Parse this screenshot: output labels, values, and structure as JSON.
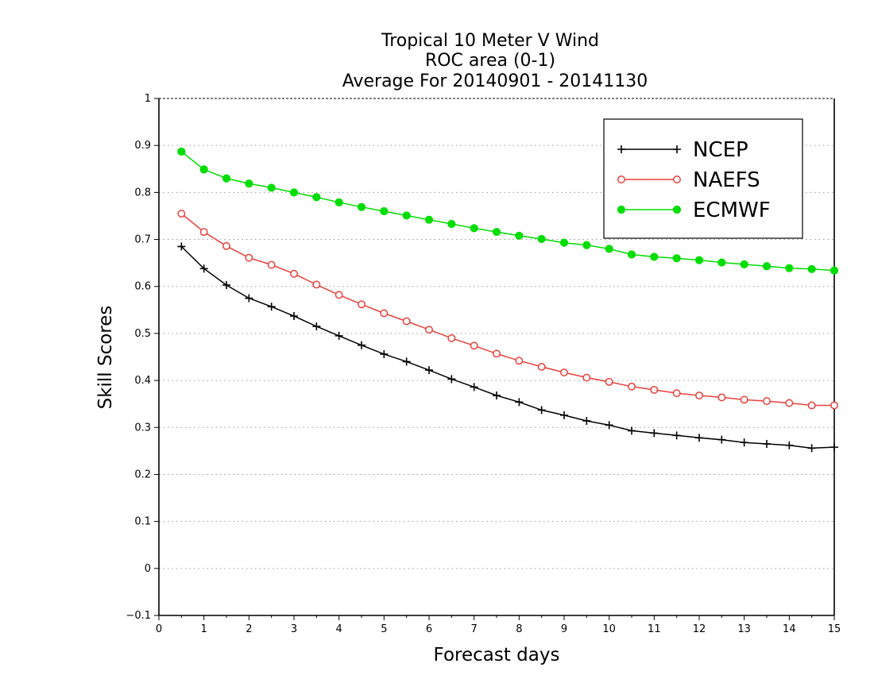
{
  "chart_data": {
    "type": "line",
    "title_lines": [
      "Tropical 10 Meter V Wind",
      "ROC area (0-1)",
      "Average For 20140901 - 20141130"
    ],
    "xlabel": "Forecast days",
    "ylabel": "Skill Scores",
    "xlim": [
      0,
      15
    ],
    "ylim": [
      -0.1,
      1
    ],
    "xticks": [
      "0",
      "1",
      "2",
      "3",
      "4",
      "5",
      "6",
      "7",
      "8",
      "9",
      "10",
      "11",
      "12",
      "13",
      "14",
      "15"
    ],
    "yticks": [
      "−0.1",
      "0",
      "0.1",
      "0.2",
      "0.3",
      "0.4",
      "0.5",
      "0.6",
      "0.7",
      "0.8",
      "0.9",
      "1"
    ],
    "grid": "horizontal dotted",
    "legend_position": "top-right",
    "x": [
      0.5,
      1,
      1.5,
      2,
      2.5,
      3,
      3.5,
      4,
      4.5,
      5,
      5.5,
      6,
      6.5,
      7,
      7.5,
      8,
      8.5,
      9,
      9.5,
      10,
      10.5,
      11,
      11.5,
      12,
      12.5,
      13,
      13.5,
      14,
      14.5,
      15
    ],
    "series": [
      {
        "name": "NCEP",
        "color": "#000000",
        "marker": "plus",
        "values": [
          0.685,
          0.638,
          0.603,
          0.575,
          0.557,
          0.537,
          0.515,
          0.495,
          0.475,
          0.456,
          0.44,
          0.422,
          0.403,
          0.386,
          0.368,
          0.354,
          0.337,
          0.326,
          0.314,
          0.305,
          0.293,
          0.288,
          0.283,
          0.278,
          0.274,
          0.268,
          0.265,
          0.262,
          0.256,
          0.258
        ]
      },
      {
        "name": "NAEFS",
        "color": "#e8413c",
        "marker": "open-circle",
        "values": [
          0.755,
          0.716,
          0.686,
          0.661,
          0.646,
          0.627,
          0.604,
          0.582,
          0.562,
          0.543,
          0.526,
          0.508,
          0.49,
          0.474,
          0.457,
          0.442,
          0.429,
          0.417,
          0.406,
          0.397,
          0.387,
          0.38,
          0.373,
          0.368,
          0.364,
          0.359,
          0.356,
          0.352,
          0.347,
          0.347
        ]
      },
      {
        "name": "ECMWF",
        "color": "#00dd00",
        "marker": "filled-circle",
        "values": [
          0.887,
          0.849,
          0.83,
          0.819,
          0.81,
          0.8,
          0.79,
          0.779,
          0.769,
          0.76,
          0.751,
          0.742,
          0.733,
          0.724,
          0.716,
          0.708,
          0.701,
          0.693,
          0.688,
          0.68,
          0.668,
          0.663,
          0.66,
          0.656,
          0.651,
          0.647,
          0.643,
          0.639,
          0.637,
          0.634
        ]
      }
    ]
  }
}
